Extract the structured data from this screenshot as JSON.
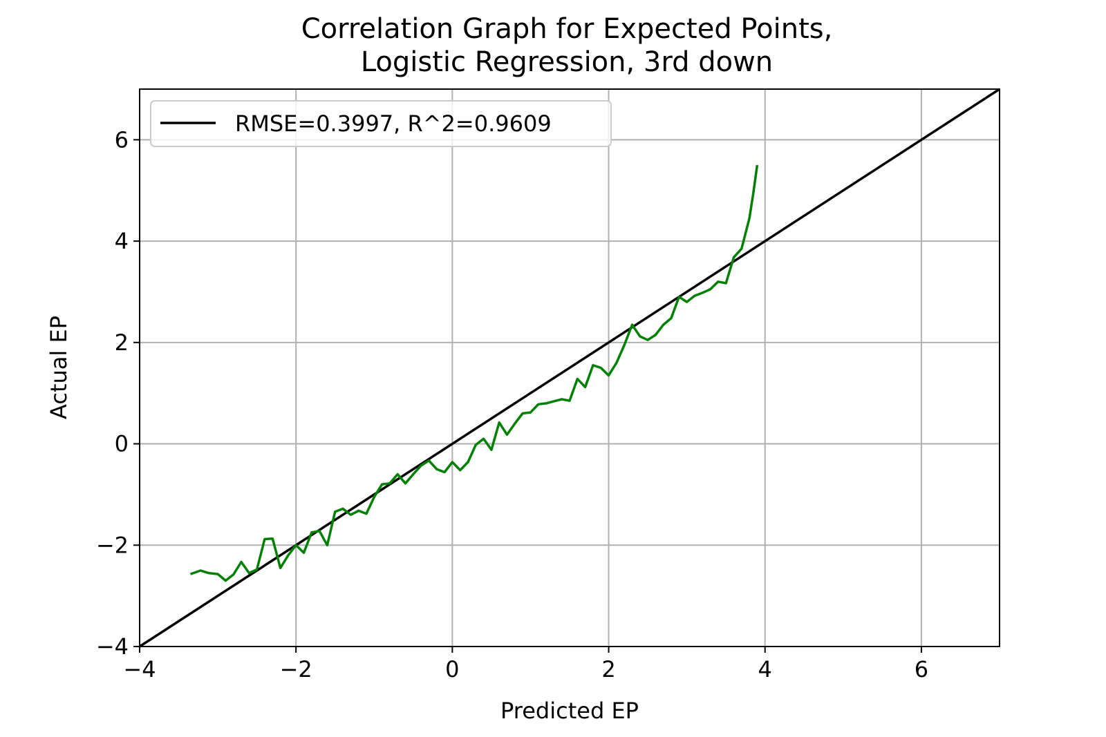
{
  "chart_data": {
    "type": "line",
    "title_lines": [
      "Correlation Graph for Expected Points,",
      "Logistic Regression, 3rd down"
    ],
    "xlabel": "Predicted EP",
    "ylabel": "Actual EP",
    "xlim": [
      -4,
      7
    ],
    "ylim": [
      -4,
      7
    ],
    "xticks": [
      -4,
      -2,
      0,
      2,
      4,
      6
    ],
    "yticks": [
      -4,
      -2,
      0,
      2,
      4,
      6
    ],
    "xtick_labels": [
      "−4",
      "−2",
      "0",
      "2",
      "4",
      "6"
    ],
    "ytick_labels": [
      "−4",
      "−2",
      "0",
      "2",
      "4",
      "6"
    ],
    "grid": true,
    "legend_position": "top-left",
    "series": [
      {
        "name": "RMSE=0.3997, R^2=0.9609",
        "color": "#000000",
        "style": "line",
        "x": [
          -4,
          7
        ],
        "y": [
          -4,
          7
        ]
      },
      {
        "name": "",
        "color": "#008000",
        "style": "line",
        "x": [
          -3.35,
          -3.22,
          -3.12,
          -3.0,
          -2.9,
          -2.8,
          -2.7,
          -2.6,
          -2.5,
          -2.4,
          -2.3,
          -2.2,
          -2.1,
          -2.0,
          -1.9,
          -1.8,
          -1.7,
          -1.6,
          -1.5,
          -1.4,
          -1.3,
          -1.2,
          -1.1,
          -1.0,
          -0.9,
          -0.8,
          -0.7,
          -0.6,
          -0.5,
          -0.4,
          -0.3,
          -0.2,
          -0.1,
          0.0,
          0.1,
          0.2,
          0.3,
          0.4,
          0.5,
          0.6,
          0.7,
          0.8,
          0.9,
          1.0,
          1.1,
          1.2,
          1.3,
          1.4,
          1.5,
          1.6,
          1.7,
          1.8,
          1.9,
          2.0,
          2.1,
          2.2,
          2.3,
          2.4,
          2.5,
          2.6,
          2.7,
          2.8,
          2.9,
          3.0,
          3.1,
          3.2,
          3.3,
          3.4,
          3.5,
          3.6,
          3.7,
          3.8,
          3.85,
          3.9
        ],
        "y": [
          -2.57,
          -2.5,
          -2.55,
          -2.57,
          -2.7,
          -2.58,
          -2.33,
          -2.55,
          -2.48,
          -1.88,
          -1.87,
          -2.45,
          -2.2,
          -2.0,
          -2.15,
          -1.75,
          -1.72,
          -2.0,
          -1.34,
          -1.28,
          -1.4,
          -1.32,
          -1.38,
          -1.05,
          -0.8,
          -0.78,
          -0.6,
          -0.78,
          -0.6,
          -0.43,
          -0.33,
          -0.5,
          -0.56,
          -0.36,
          -0.52,
          -0.36,
          -0.02,
          0.1,
          -0.12,
          0.42,
          0.18,
          0.4,
          0.6,
          0.62,
          0.78,
          0.8,
          0.84,
          0.88,
          0.85,
          1.28,
          1.12,
          1.55,
          1.5,
          1.35,
          1.6,
          1.95,
          2.35,
          2.12,
          2.05,
          2.15,
          2.35,
          2.48,
          2.9,
          2.8,
          2.92,
          2.98,
          3.05,
          3.2,
          3.17,
          3.68,
          3.85,
          4.45,
          4.95,
          5.5
        ]
      }
    ]
  }
}
